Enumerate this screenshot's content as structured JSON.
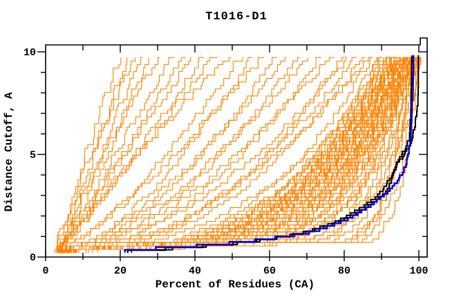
{
  "chart_data": {
    "type": "line",
    "title": "T1016-D1",
    "xlabel": "Percent of Residues (CA)",
    "ylabel": "Distance Cutoff, A",
    "xlim": [
      0,
      102
    ],
    "ylim": [
      0,
      10.3
    ],
    "x_ticks": [
      0,
      20,
      40,
      60,
      80,
      100
    ],
    "x_minor_ticks": [
      10,
      30,
      50,
      70,
      90
    ],
    "y_ticks": [
      0,
      5,
      10
    ],
    "y_minor_ticks": [
      1,
      2,
      3,
      4,
      6,
      7,
      8,
      9
    ],
    "grid": false,
    "legend": "none",
    "colors": {
      "prediction": "#ff8200",
      "reference_black": "#000000",
      "highlight_blue": "#0000dd",
      "frame": "#000000",
      "background": "#ffffff"
    },
    "n_prediction_curves": 86,
    "series": [
      {
        "name": "prediction-curves-orange",
        "color": "#ff8200",
        "curve_model": "percent(c) = s + (t - s) * ((c - 0.18) / 9.67)^k * min(1,(c-0.15)/0.55)",
        "params_legend": [
          "s_start_percent",
          "t_percent_at_cutoff_9.85",
          "k_shape"
        ],
        "params": [
          [
            3,
            20,
            1.05
          ],
          [
            3.5,
            22,
            0.95
          ],
          [
            2.5,
            24,
            1.1
          ],
          [
            4,
            26,
            1.0
          ],
          [
            3.5,
            28,
            0.9
          ],
          [
            3,
            31,
            1.15
          ],
          [
            4,
            34,
            1.0
          ],
          [
            3.5,
            37,
            0.95
          ],
          [
            4.5,
            40,
            1.05
          ],
          [
            3,
            43,
            0.9
          ],
          [
            4,
            46,
            1.0
          ],
          [
            3.5,
            50,
            1.1
          ],
          [
            3.5,
            53,
            0.75
          ],
          [
            4.5,
            56,
            0.65
          ],
          [
            3,
            59,
            0.8
          ],
          [
            4,
            62,
            0.6
          ],
          [
            5,
            65,
            0.7
          ],
          [
            3.5,
            68,
            0.55
          ],
          [
            4.5,
            71,
            0.65
          ],
          [
            3,
            74,
            0.5
          ],
          [
            4,
            77,
            0.6
          ],
          [
            5,
            80,
            0.45
          ],
          [
            3.5,
            82,
            0.55
          ],
          [
            4.5,
            84,
            0.5
          ],
          [
            4,
            86,
            0.45
          ],
          [
            3.5,
            87,
            0.5
          ],
          [
            3,
            88,
            0.35
          ],
          [
            3.5,
            89,
            0.3
          ],
          [
            4,
            90,
            0.28
          ],
          [
            2.5,
            90,
            0.32
          ],
          [
            3.5,
            91,
            0.25
          ],
          [
            4.5,
            91,
            0.3
          ],
          [
            3,
            92,
            0.22
          ],
          [
            4,
            92,
            0.28
          ],
          [
            2.5,
            92,
            0.33
          ],
          [
            3.5,
            93,
            0.2
          ],
          [
            4.5,
            93,
            0.26
          ],
          [
            3,
            93,
            0.3
          ],
          [
            4,
            94,
            0.18
          ],
          [
            2.5,
            94,
            0.24
          ],
          [
            3.5,
            94,
            0.3
          ],
          [
            4.5,
            94,
            0.35
          ],
          [
            3,
            95,
            0.16
          ],
          [
            4,
            95,
            0.2
          ],
          [
            2.5,
            95,
            0.26
          ],
          [
            3.5,
            95,
            0.3
          ],
          [
            4.5,
            95,
            0.34
          ],
          [
            3,
            96,
            0.14
          ],
          [
            4,
            96,
            0.18
          ],
          [
            2.5,
            96,
            0.22
          ],
          [
            3.5,
            96,
            0.26
          ],
          [
            4.5,
            96,
            0.3
          ],
          [
            3,
            96,
            0.34
          ],
          [
            4,
            97,
            0.12
          ],
          [
            2.5,
            97,
            0.16
          ],
          [
            3.5,
            97,
            0.2
          ],
          [
            4.5,
            97,
            0.24
          ],
          [
            3,
            97,
            0.28
          ],
          [
            4,
            97,
            0.32
          ],
          [
            2.5,
            98,
            0.1
          ],
          [
            3.5,
            98,
            0.14
          ],
          [
            4.5,
            98,
            0.18
          ],
          [
            3,
            98,
            0.22
          ],
          [
            4,
            98,
            0.26
          ],
          [
            2.5,
            98,
            0.3
          ],
          [
            3.5,
            98,
            0.34
          ],
          [
            4.5,
            99,
            0.09
          ],
          [
            3,
            99,
            0.12
          ],
          [
            4,
            99,
            0.16
          ],
          [
            2.5,
            99,
            0.2
          ],
          [
            3.5,
            99,
            0.24
          ],
          [
            4.5,
            99,
            0.28
          ],
          [
            3,
            99,
            0.32
          ],
          [
            4,
            100,
            0.08
          ],
          [
            2.5,
            100,
            0.11
          ],
          [
            3.5,
            100,
            0.15
          ],
          [
            4.5,
            100,
            0.19
          ],
          [
            3,
            100,
            0.23
          ],
          [
            4,
            100,
            0.27
          ],
          [
            5,
            100,
            0.31
          ],
          [
            6,
            99.5,
            0.06
          ],
          [
            7,
            99.8,
            0.05
          ],
          [
            5,
            98.5,
            0.07
          ],
          [
            6.5,
            97.5,
            0.06
          ],
          [
            6,
            96.5,
            0.4
          ],
          [
            5,
            95.5,
            0.45
          ]
        ]
      },
      {
        "name": "reference-curve-black-1",
        "color": "#000000",
        "points_legend": [
          "percent_of_residues",
          "distance_cutoff_A"
        ],
        "points": [
          [
            22,
            0.2
          ],
          [
            28,
            0.28
          ],
          [
            36,
            0.38
          ],
          [
            45,
            0.5
          ],
          [
            53,
            0.64
          ],
          [
            60,
            0.8
          ],
          [
            66,
            1.0
          ],
          [
            71,
            1.2
          ],
          [
            75,
            1.45
          ],
          [
            79,
            1.75
          ],
          [
            82,
            2.05
          ],
          [
            85,
            2.35
          ],
          [
            87.5,
            2.7
          ],
          [
            89.5,
            3.0
          ],
          [
            91,
            3.35
          ],
          [
            92.3,
            3.75
          ],
          [
            93.3,
            4.1
          ],
          [
            94.2,
            4.45
          ],
          [
            95,
            4.75
          ],
          [
            95.8,
            5.0
          ],
          [
            97,
            5.35
          ],
          [
            97.4,
            5.8
          ],
          [
            97.6,
            6.6
          ],
          [
            97.8,
            7.6
          ],
          [
            97.9,
            8.7
          ],
          [
            98,
            9.9
          ]
        ]
      },
      {
        "name": "reference-curve-black-2",
        "color": "#000000",
        "points_legend": [
          "percent_of_residues",
          "distance_cutoff_A"
        ],
        "points": [
          [
            23,
            0.22
          ],
          [
            30,
            0.3
          ],
          [
            39,
            0.42
          ],
          [
            48,
            0.55
          ],
          [
            56,
            0.7
          ],
          [
            63,
            0.9
          ],
          [
            69,
            1.1
          ],
          [
            74,
            1.35
          ],
          [
            78,
            1.6
          ],
          [
            82,
            1.95
          ],
          [
            85.5,
            2.3
          ],
          [
            88,
            2.6
          ],
          [
            90,
            2.9
          ],
          [
            91.5,
            3.2
          ],
          [
            92.5,
            3.6
          ],
          [
            93.2,
            4.0
          ],
          [
            93.6,
            4.35
          ],
          [
            94.8,
            4.6
          ],
          [
            96,
            4.9
          ],
          [
            97,
            5.2
          ],
          [
            98,
            5.6
          ],
          [
            98.7,
            6.1
          ],
          [
            99.2,
            6.6
          ],
          [
            99.5,
            7.1
          ],
          [
            99.6,
            8.0
          ],
          [
            99.7,
            9.0
          ],
          [
            99.7,
            9.9
          ]
        ]
      },
      {
        "name": "highlight-curve-blue",
        "color": "#0000dd",
        "points_legend": [
          "percent_of_residues",
          "distance_cutoff_A"
        ],
        "points": [
          [
            21,
            0.22
          ],
          [
            26,
            0.3
          ],
          [
            33,
            0.4
          ],
          [
            42,
            0.5
          ],
          [
            50,
            0.62
          ],
          [
            58,
            0.78
          ],
          [
            65,
            0.95
          ],
          [
            70,
            1.1
          ],
          [
            74,
            1.3
          ],
          [
            78,
            1.55
          ],
          [
            81,
            1.8
          ],
          [
            84,
            2.1
          ],
          [
            87,
            2.45
          ],
          [
            89.5,
            2.75
          ],
          [
            91.5,
            3.05
          ],
          [
            93,
            3.3
          ],
          [
            94.5,
            3.7
          ],
          [
            95.8,
            4.1
          ],
          [
            96.6,
            4.5
          ],
          [
            97.1,
            4.9
          ],
          [
            97.5,
            5.4
          ],
          [
            97.8,
            6.2
          ],
          [
            98.1,
            7.2
          ],
          [
            98.3,
            8.4
          ],
          [
            98.4,
            9.9
          ]
        ]
      }
    ]
  }
}
